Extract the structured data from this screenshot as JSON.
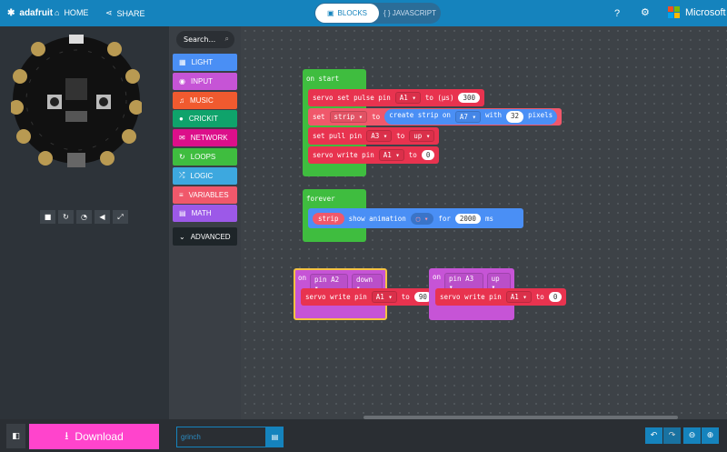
{
  "header": {
    "logo": "adafruit",
    "home": "HOME",
    "share": "SHARE",
    "blocks_tab": "BLOCKS",
    "js_tab": "{ } JAVASCRIPT",
    "brand": "Microsoft"
  },
  "toolbox": {
    "search_placeholder": "Search...",
    "categories": [
      {
        "label": "LIGHT",
        "color": "#4a8ff5",
        "icon": "grid-icon",
        "glyph": "▦"
      },
      {
        "label": "INPUT",
        "color": "#c654d6",
        "icon": "target-icon",
        "glyph": "◉"
      },
      {
        "label": "MUSIC",
        "color": "#f05a2f",
        "icon": "headphones-icon",
        "glyph": "♫"
      },
      {
        "label": "CRICKIT",
        "color": "#0fa36b",
        "icon": "circle-icon",
        "glyph": "●"
      },
      {
        "label": "NETWORK",
        "color": "#dc0f8a",
        "icon": "chat-icon",
        "glyph": "✉"
      },
      {
        "label": "LOOPS",
        "color": "#3fbd3f",
        "icon": "refresh-icon",
        "glyph": "↻"
      },
      {
        "label": "LOGIC",
        "color": "#3da8df",
        "icon": "shuffle-icon",
        "glyph": "⤮"
      },
      {
        "label": "VARIABLES",
        "color": "#f0586b",
        "icon": "list-icon",
        "glyph": "≡"
      },
      {
        "label": "MATH",
        "color": "#9c59e8",
        "icon": "calculator-icon",
        "glyph": "▤"
      }
    ],
    "advanced": "ADVANCED"
  },
  "workspace": {
    "on_start": {
      "label": "on start",
      "b1": [
        "servo set pulse pin",
        "A1",
        "to (µs)",
        "300"
      ],
      "b2": [
        "set",
        "strip",
        "to",
        "create strip on",
        "A7",
        "with",
        "32",
        "pixels"
      ],
      "b3": [
        "set pull pin",
        "A3",
        "to",
        "up"
      ],
      "b4": [
        "servo write pin",
        "A1",
        "to",
        "0"
      ]
    },
    "forever": {
      "label": "forever",
      "b1": [
        "strip",
        "show animation",
        "for",
        "2000",
        "ms"
      ]
    },
    "event1": {
      "on": "on",
      "pin": "pin A2",
      "state": "down",
      "b": [
        "servo write pin",
        "A1",
        "to",
        "90"
      ]
    },
    "event2": {
      "on": "on",
      "pin": "pin A3",
      "state": "up",
      "b": [
        "servo write pin",
        "A1",
        "to",
        "0"
      ]
    }
  },
  "bottom": {
    "download": "Download",
    "project_name": "grinch"
  }
}
